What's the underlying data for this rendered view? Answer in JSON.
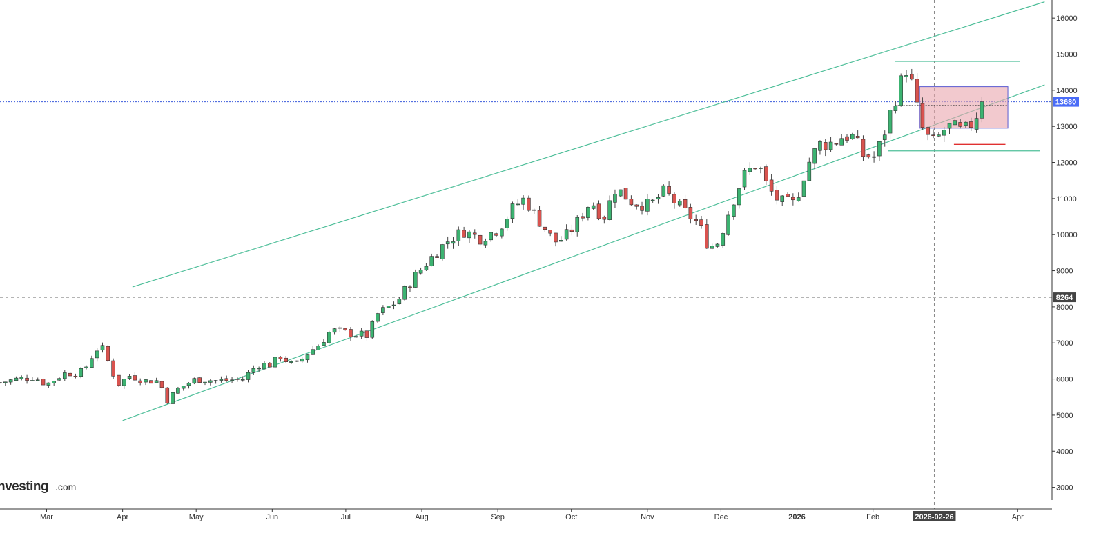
{
  "brand": {
    "name": "nvesting",
    "suffix": ".com"
  },
  "colors": {
    "up": "#3cb371",
    "down": "#d9534f",
    "wick": "#444444",
    "trendline": "#4fbf9a",
    "support_red": "#e03030",
    "price_line": "#3b5bdb",
    "crosshair": "#888888",
    "box_fill": "#eaa5ad",
    "box_stroke": "#5a5ad0",
    "price_tag_bg": "#4a6cf7",
    "crosshair_tag_bg": "#444444"
  },
  "price_tag": "13680",
  "crosshair_price_tag": "8264",
  "crosshair_date_tag": "2026-02-26",
  "chart_data": {
    "type": "candlestick",
    "x_start": "2025-02-10",
    "x_end": "2026-04-15",
    "ylim": [
      2400,
      16500
    ],
    "yticks": [
      "3000",
      "4000",
      "5000",
      "6000",
      "7000",
      "8000",
      "9000",
      "10000",
      "11000",
      "12000",
      "13000",
      "14000",
      "15000",
      "16000"
    ],
    "xticks": [
      {
        "label": "Mar",
        "date": "2025-03-01",
        "bold": false
      },
      {
        "label": "Apr",
        "date": "2025-04-01",
        "bold": false
      },
      {
        "label": "May",
        "date": "2025-05-01",
        "bold": false
      },
      {
        "label": "Jun",
        "date": "2025-06-01",
        "bold": false
      },
      {
        "label": "Jul",
        "date": "2025-07-01",
        "bold": false
      },
      {
        "label": "Aug",
        "date": "2025-08-01",
        "bold": false
      },
      {
        "label": "Sep",
        "date": "2025-09-01",
        "bold": false
      },
      {
        "label": "Oct",
        "date": "2025-10-01",
        "bold": false
      },
      {
        "label": "Nov",
        "date": "2025-11-01",
        "bold": false
      },
      {
        "label": "Dec",
        "date": "2025-12-01",
        "bold": false
      },
      {
        "label": "2026",
        "date": "2026-01-01",
        "bold": true
      },
      {
        "label": "Feb",
        "date": "2026-02-01",
        "bold": false
      },
      {
        "label": "Apr",
        "date": "2026-04-01",
        "bold": false
      }
    ],
    "last_price": 13680,
    "crosshair": {
      "date": "2026-02-26",
      "price": 8264
    },
    "candle_anchors": [
      [
        "2025-02-10",
        5900
      ],
      [
        "2025-02-17",
        6000
      ],
      [
        "2025-02-24",
        6050
      ],
      [
        "2025-03-01",
        5850
      ],
      [
        "2025-03-08",
        6150
      ],
      [
        "2025-03-16",
        6200
      ],
      [
        "2025-03-20",
        6700
      ],
      [
        "2025-03-23",
        6950
      ],
      [
        "2025-03-26",
        6500
      ],
      [
        "2025-03-30",
        5850
      ],
      [
        "2025-04-04",
        6100
      ],
      [
        "2025-04-10",
        5950
      ],
      [
        "2025-04-16",
        5950
      ],
      [
        "2025-04-19",
        5400
      ],
      [
        "2025-04-24",
        5750
      ],
      [
        "2025-05-01",
        6000
      ],
      [
        "2025-05-10",
        5950
      ],
      [
        "2025-05-20",
        6000
      ],
      [
        "2025-05-26",
        6400
      ],
      [
        "2025-06-01",
        6400
      ],
      [
        "2025-06-04",
        6650
      ],
      [
        "2025-06-10",
        6350
      ],
      [
        "2025-06-16",
        6750
      ],
      [
        "2025-06-20",
        6950
      ],
      [
        "2025-06-25",
        7350
      ],
      [
        "2025-07-04",
        7250
      ],
      [
        "2025-07-10",
        7200
      ],
      [
        "2025-07-14",
        7800
      ],
      [
        "2025-07-22",
        8150
      ],
      [
        "2025-07-28",
        8750
      ],
      [
        "2025-08-04",
        9300
      ],
      [
        "2025-08-11",
        9800
      ],
      [
        "2025-08-18",
        10100
      ],
      [
        "2025-08-25",
        9900
      ],
      [
        "2025-09-01",
        10150
      ],
      [
        "2025-09-08",
        10800
      ],
      [
        "2025-09-12",
        11000
      ],
      [
        "2025-09-16",
        10550
      ],
      [
        "2025-09-20",
        10200
      ],
      [
        "2025-09-24",
        9800
      ],
      [
        "2025-09-28",
        9900
      ],
      [
        "2025-10-03",
        10300
      ],
      [
        "2025-10-09",
        10950
      ],
      [
        "2025-10-14",
        10450
      ],
      [
        "2025-10-19",
        11300
      ],
      [
        "2025-10-26",
        10900
      ],
      [
        "2025-11-02",
        10800
      ],
      [
        "2025-11-08",
        11200
      ],
      [
        "2025-11-15",
        10700
      ],
      [
        "2025-11-22",
        10300
      ],
      [
        "2025-11-26",
        9650
      ],
      [
        "2025-11-30",
        9800
      ],
      [
        "2025-12-05",
        10800
      ],
      [
        "2025-12-10",
        11600
      ],
      [
        "2025-12-16",
        12000
      ],
      [
        "2025-12-20",
        11300
      ],
      [
        "2025-12-25",
        10900
      ],
      [
        "2025-12-31",
        10850
      ],
      [
        "2026-01-05",
        11900
      ],
      [
        "2026-01-10",
        12500
      ],
      [
        "2026-01-16",
        12550
      ],
      [
        "2026-01-20",
        12750
      ],
      [
        "2026-01-24",
        12700
      ],
      [
        "2026-01-28",
        12200
      ],
      [
        "2026-02-02",
        12150
      ],
      [
        "2026-02-06",
        12900
      ],
      [
        "2026-02-09",
        13600
      ],
      [
        "2026-02-12",
        14100
      ],
      [
        "2026-02-14",
        14700
      ],
      [
        "2026-02-16",
        14350
      ],
      [
        "2026-02-18",
        13900
      ],
      [
        "2026-02-20",
        13100
      ],
      [
        "2026-02-23",
        12700
      ],
      [
        "2026-02-26",
        12550
      ],
      [
        "2026-03-02",
        12900
      ],
      [
        "2026-03-05",
        13000
      ],
      [
        "2026-03-09",
        12850
      ],
      [
        "2026-03-12",
        12950
      ],
      [
        "2026-03-15",
        13300
      ],
      [
        "2026-03-18",
        13680
      ]
    ],
    "annotations": {
      "channel_upper": [
        [
          "2025-04-05",
          8550
        ],
        [
          "2026-04-12",
          16450
        ]
      ],
      "channel_lower": [
        [
          "2025-04-01",
          4850
        ],
        [
          "2026-04-12",
          14150
        ]
      ],
      "hline_top": {
        "from": "2026-02-10",
        "to": "2026-04-02",
        "price": 14800
      },
      "hline_bottom": {
        "from": "2026-02-07",
        "to": "2026-04-10",
        "price": 12320
      },
      "support_red": {
        "from": "2026-03-06",
        "to": "2026-03-27",
        "price": 12500
      },
      "range_box": {
        "from": "2026-02-20",
        "to": "2026-03-28",
        "top": 14100,
        "bottom": 12950
      },
      "box_dotted": {
        "from": "2026-02-10",
        "to": "2026-03-28",
        "price": 13580
      }
    }
  }
}
